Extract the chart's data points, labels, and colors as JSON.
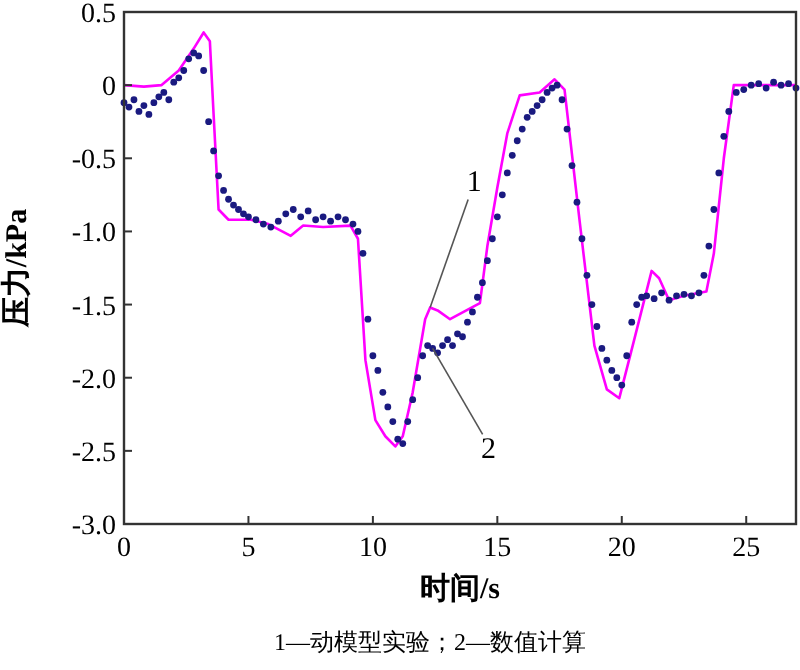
{
  "chart_data": {
    "type": "line",
    "xlabel": "时间/s",
    "ylabel": "压力/kPa",
    "xlim": [
      0,
      27
    ],
    "ylim": [
      -3,
      0.5
    ],
    "xticks": [
      0,
      5,
      10,
      15,
      20,
      25
    ],
    "yticks": [
      0.5,
      0,
      {
        "value": -0.5,
        "label": "-0.5"
      },
      {
        "value": -1,
        "label": "-1.0"
      },
      {
        "value": -1.5,
        "label": "-1.5"
      },
      {
        "value": -2,
        "label": "-2.0"
      },
      {
        "value": -2.5,
        "label": "-2.5"
      },
      {
        "value": -3,
        "label": "-3.0"
      }
    ],
    "grid": false,
    "series": [
      {
        "name": "1",
        "color": "#ff00ff",
        "x": [
          0,
          0.8,
          1.5,
          2.2,
          2.8,
          3.2,
          3.45,
          3.6,
          3.8,
          4.2,
          5.1,
          5.8,
          6.7,
          7.2,
          8,
          9.1,
          9.4,
          9.7,
          10.1,
          10.5,
          10.9,
          11.2,
          11.6,
          12.1,
          12.3,
          12.6,
          13.1,
          14.3,
          14.6,
          15,
          15.4,
          15.9,
          16.7,
          17.3,
          17.7,
          18.3,
          18.9,
          19.4,
          19.9,
          20.5,
          21.2,
          21.5,
          21.9,
          22.5,
          23.4,
          23.7,
          24.1,
          24.5,
          25.5,
          27
        ],
        "values": [
          0,
          -0.01,
          0,
          0.1,
          0.25,
          0.36,
          0.3,
          -0.2,
          -0.85,
          -0.92,
          -0.92,
          -0.95,
          -1.03,
          -0.96,
          -0.97,
          -0.96,
          -1.05,
          -1.88,
          -2.29,
          -2.4,
          -2.47,
          -2.4,
          -2.1,
          -1.6,
          -1.52,
          -1.54,
          -1.6,
          -1.49,
          -1.1,
          -0.7,
          -0.33,
          -0.07,
          -0.05,
          0.04,
          -0.03,
          -0.92,
          -1.78,
          -2.08,
          -2.14,
          -1.74,
          -1.27,
          -1.32,
          -1.47,
          -1.44,
          -1.41,
          -1.15,
          -0.5,
          0,
          0,
          0
        ]
      },
      {
        "name": "2",
        "type": "scatter",
        "color": "#1a1a80",
        "marker": "circle",
        "x": [
          0,
          0.2,
          0.4,
          0.6,
          0.8,
          1,
          1.2,
          1.4,
          1.6,
          1.8,
          2,
          2.2,
          2.4,
          2.6,
          2.8,
          3,
          3.2,
          3.4,
          3.6,
          3.8,
          4,
          4.2,
          4.4,
          4.6,
          4.8,
          5,
          5.3,
          5.6,
          5.9,
          6.2,
          6.5,
          6.8,
          7.1,
          7.4,
          7.7,
          8,
          8.3,
          8.6,
          8.9,
          9.2,
          9.4,
          9.6,
          9.8,
          10,
          10.2,
          10.4,
          10.6,
          10.8,
          11,
          11.2,
          11.4,
          11.6,
          11.8,
          12,
          12.2,
          12.4,
          12.6,
          12.8,
          13,
          13.2,
          13.4,
          13.6,
          13.8,
          14,
          14.2,
          14.4,
          14.6,
          14.8,
          15,
          15.2,
          15.4,
          15.6,
          15.8,
          16,
          16.2,
          16.4,
          16.6,
          16.8,
          17,
          17.2,
          17.4,
          17.6,
          17.8,
          18,
          18.2,
          18.4,
          18.6,
          18.8,
          19,
          19.2,
          19.4,
          19.6,
          19.8,
          20,
          20.2,
          20.4,
          20.6,
          20.8,
          21,
          21.3,
          21.6,
          21.9,
          22.2,
          22.5,
          22.8,
          23.1,
          23.3,
          23.5,
          23.7,
          23.9,
          24.1,
          24.3,
          24.6,
          24.9,
          25.2,
          25.5,
          25.8,
          26.1,
          26.4,
          26.7,
          27
        ],
        "values": [
          -0.12,
          -0.15,
          -0.1,
          -0.18,
          -0.14,
          -0.2,
          -0.12,
          -0.08,
          -0.05,
          -0.1,
          0.02,
          0.05,
          0.1,
          0.18,
          0.22,
          0.2,
          0.1,
          -0.25,
          -0.45,
          -0.62,
          -0.72,
          -0.78,
          -0.82,
          -0.85,
          -0.88,
          -0.9,
          -0.92,
          -0.95,
          -0.97,
          -0.93,
          -0.88,
          -0.85,
          -0.9,
          -0.86,
          -0.92,
          -0.9,
          -0.93,
          -0.9,
          -0.92,
          -0.95,
          -1.0,
          -1.15,
          -1.6,
          -1.85,
          -1.95,
          -2.1,
          -2.2,
          -2.3,
          -2.42,
          -2.45,
          -2.3,
          -2.15,
          -2.0,
          -1.85,
          -1.78,
          -1.8,
          -1.83,
          -1.78,
          -1.74,
          -1.78,
          -1.7,
          -1.72,
          -1.62,
          -1.55,
          -1.45,
          -1.35,
          -1.2,
          -1.05,
          -0.9,
          -0.75,
          -0.6,
          -0.48,
          -0.38,
          -0.3,
          -0.22,
          -0.18,
          -0.14,
          -0.1,
          -0.05,
          -0.02,
          0.0,
          -0.1,
          -0.3,
          -0.55,
          -0.8,
          -1.05,
          -1.3,
          -1.5,
          -1.65,
          -1.8,
          -1.88,
          -1.95,
          -2.0,
          -2.05,
          -1.85,
          -1.62,
          -1.5,
          -1.45,
          -1.44,
          -1.46,
          -1.42,
          -1.47,
          -1.44,
          -1.43,
          -1.44,
          -1.42,
          -1.3,
          -1.1,
          -0.85,
          -0.6,
          -0.35,
          -0.18,
          -0.05,
          -0.03,
          0.0,
          0.01,
          -0.02,
          0.02,
          0.0,
          0.01,
          -0.02
        ]
      }
    ],
    "annotations": [
      "1—动模型实验；2—数值计算"
    ]
  }
}
